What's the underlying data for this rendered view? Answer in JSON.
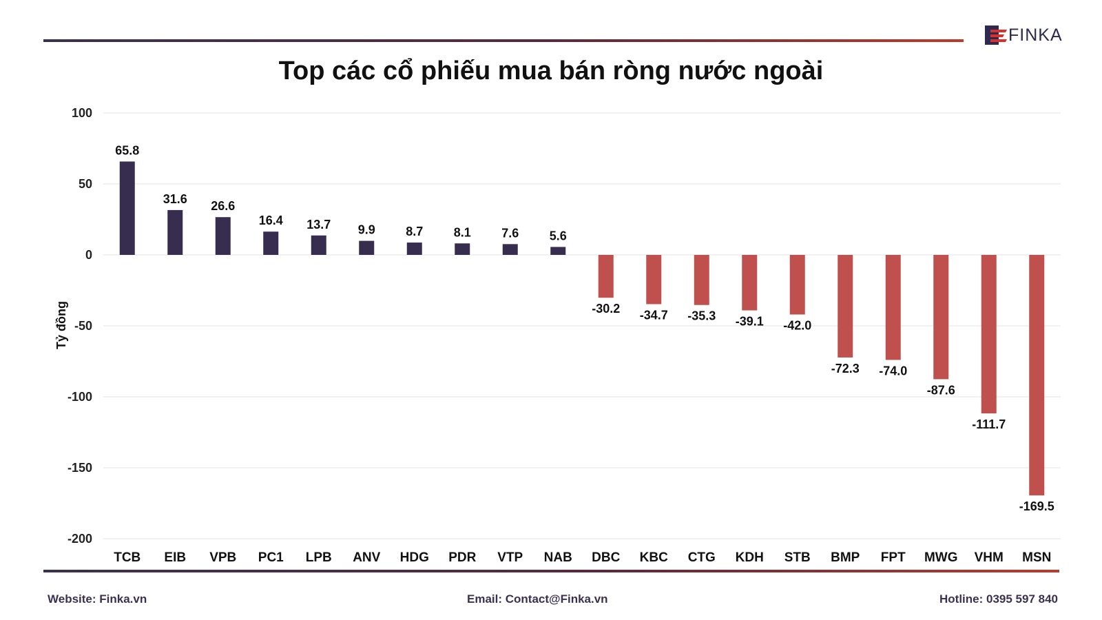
{
  "header": {
    "logo_text": "FINKA",
    "title": "Top các cổ phiếu mua bán ròng nước ngoài"
  },
  "footer": {
    "website": "Website: Finka.vn",
    "email": "Email: Contact@Finka.vn",
    "hotline": "Hotline: 0395 597 840"
  },
  "colors": {
    "positive": "#372d4f",
    "negative": "#c0504d",
    "grid": "#e3e3e3"
  },
  "chart_data": {
    "type": "bar",
    "ylabel": "Tỷ đồng",
    "ylim": [
      -200,
      100
    ],
    "yticks": [
      100,
      50,
      0,
      -50,
      -100,
      -150,
      -200
    ],
    "grid": true,
    "categories": [
      "TCB",
      "EIB",
      "VPB",
      "PC1",
      "LPB",
      "ANV",
      "HDG",
      "PDR",
      "VTP",
      "NAB",
      "DBC",
      "KBC",
      "CTG",
      "KDH",
      "STB",
      "BMP",
      "FPT",
      "MWG",
      "VHM",
      "MSN"
    ],
    "values": [
      65.8,
      31.6,
      26.6,
      16.4,
      13.7,
      9.9,
      8.7,
      8.1,
      7.6,
      5.6,
      -30.2,
      -34.7,
      -35.3,
      -39.1,
      -42.0,
      -72.3,
      -74.0,
      -87.6,
      -111.7,
      -169.5
    ],
    "value_labels": [
      "65.8",
      "31.6",
      "26.6",
      "16.4",
      "13.7",
      "9.9",
      "8.7",
      "8.1",
      "7.6",
      "5.6",
      "-30.2",
      "-34.7",
      "-35.3",
      "-39.1",
      "-42.0",
      "-72.3",
      "-74.0",
      "-87.6",
      "-111.7",
      "-169.5"
    ]
  }
}
